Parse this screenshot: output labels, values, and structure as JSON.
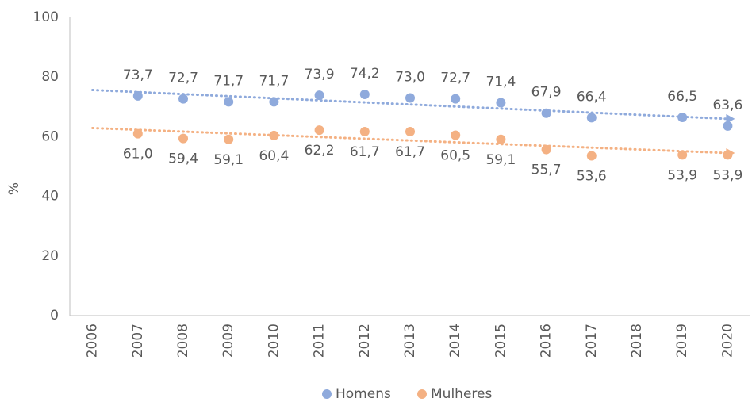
{
  "chart_data": {
    "type": "scatter",
    "y_label": "%",
    "x": [
      2007,
      2008,
      2009,
      2010,
      2011,
      2012,
      2013,
      2014,
      2015,
      2016,
      2017,
      2019,
      2020
    ],
    "series": [
      {
        "name": "Homens",
        "color": "#8faadc",
        "values": [
          73.7,
          72.7,
          71.7,
          71.7,
          73.9,
          74.2,
          73.0,
          72.7,
          71.4,
          67.9,
          66.4,
          66.5,
          63.6
        ],
        "value_labels": [
          "73,7",
          "72,7",
          "71,7",
          "71,7",
          "73,9",
          "74,2",
          "73,0",
          "72,7",
          "71,4",
          "67,9",
          "66,4",
          "66,5",
          "63,6"
        ]
      },
      {
        "name": "Mulheres",
        "color": "#f4b183",
        "values": [
          61.0,
          59.4,
          59.1,
          60.4,
          62.2,
          61.7,
          61.7,
          60.5,
          59.1,
          55.7,
          53.6,
          53.9,
          53.9
        ],
        "value_labels": [
          "61,0",
          "59,4",
          "59,1",
          "60,4",
          "62,2",
          "61,7",
          "61,7",
          "60,5",
          "59,1",
          "55,7",
          "53,6",
          "53,9",
          "53,9"
        ]
      }
    ],
    "xlim": [
      2005.5,
      2020.5
    ],
    "xticks": [
      2006,
      2007,
      2008,
      2009,
      2010,
      2011,
      2012,
      2013,
      2014,
      2015,
      2016,
      2017,
      2018,
      2019,
      2020
    ],
    "ylim": [
      0,
      100
    ],
    "yticks": [
      0,
      20,
      40,
      60,
      80,
      100
    ],
    "trendline": true,
    "grid": false,
    "legend": "bottom"
  }
}
